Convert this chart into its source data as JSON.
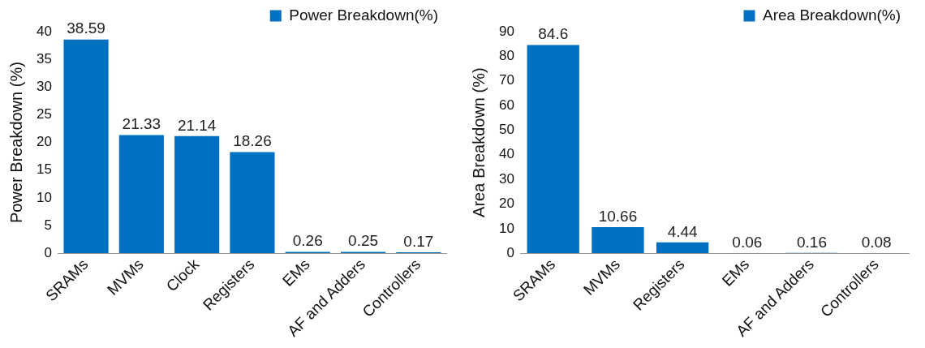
{
  "chart_data": [
    {
      "type": "bar",
      "ylabel": "Power Breakdown (%)",
      "categories": [
        "SRAMs",
        "MVMs",
        "Clock",
        "Registers",
        "EMs",
        "AF and Adders",
        "Controllers"
      ],
      "series": [
        {
          "name": "Power Breakdown(%)",
          "color": "#0070c0",
          "values": [
            38.59,
            21.33,
            21.14,
            18.26,
            0.26,
            0.25,
            0.17
          ]
        }
      ],
      "ylim": [
        0,
        40
      ],
      "yticks": [
        0,
        5,
        10,
        15,
        20,
        25,
        30,
        35,
        40
      ],
      "grid": false,
      "legend": "top right",
      "data_labels": true
    },
    {
      "type": "bar",
      "ylabel": "Area Breakdown (%)",
      "categories": [
        "SRAMs",
        "MVMs",
        "Registers",
        "EMs",
        "AF and Adders",
        "Controllers"
      ],
      "series": [
        {
          "name": "Area Breakdown(%)",
          "color": "#0070c0",
          "values": [
            84.6,
            10.66,
            4.44,
            0.06,
            0.16,
            0.08
          ]
        }
      ],
      "ylim": [
        0,
        90
      ],
      "yticks": [
        0,
        10,
        20,
        30,
        40,
        50,
        60,
        70,
        80,
        90
      ],
      "grid": false,
      "legend": "top right",
      "data_labels": true
    }
  ]
}
